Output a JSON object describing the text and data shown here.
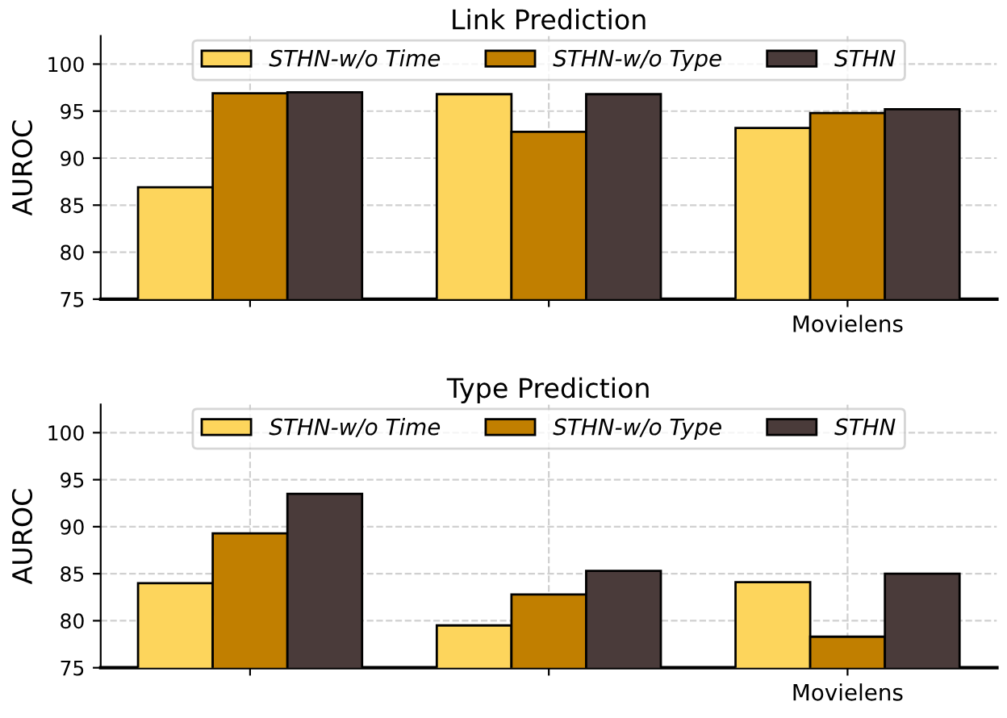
{
  "chart_data": [
    {
      "type": "bar",
      "title": "Link Prediction",
      "ylabel": "AUROC",
      "categories": [
        null,
        null,
        "Movielens"
      ],
      "ylim": [
        75,
        103
      ],
      "yticks": [
        75,
        80,
        85,
        90,
        95,
        100
      ],
      "grid": true,
      "legend": "top",
      "series": [
        {
          "name": "STHN-w/o Time",
          "color": "#fdd55c",
          "values": [
            86.9,
            96.8,
            93.2
          ]
        },
        {
          "name": "STHN-w/o Type",
          "color": "#c17f00",
          "values": [
            96.9,
            92.8,
            94.8
          ]
        },
        {
          "name": "STHN",
          "color": "#4a3b3a",
          "values": [
            97.0,
            96.8,
            95.2
          ]
        }
      ]
    },
    {
      "type": "bar",
      "title": "Type Prediction",
      "ylabel": "AUROC",
      "categories": [
        null,
        null,
        "Movielens"
      ],
      "ylim": [
        75,
        103
      ],
      "yticks": [
        75,
        80,
        85,
        90,
        95,
        100
      ],
      "grid": true,
      "legend": "top",
      "series": [
        {
          "name": "STHN-w/o Time",
          "color": "#fdd55c",
          "values": [
            84.0,
            79.5,
            84.1
          ]
        },
        {
          "name": "STHN-w/o Type",
          "color": "#c17f00",
          "values": [
            89.3,
            82.8,
            78.3
          ]
        },
        {
          "name": "STHN",
          "color": "#4a3b3a",
          "values": [
            93.5,
            85.3,
            85.0
          ]
        }
      ]
    }
  ]
}
